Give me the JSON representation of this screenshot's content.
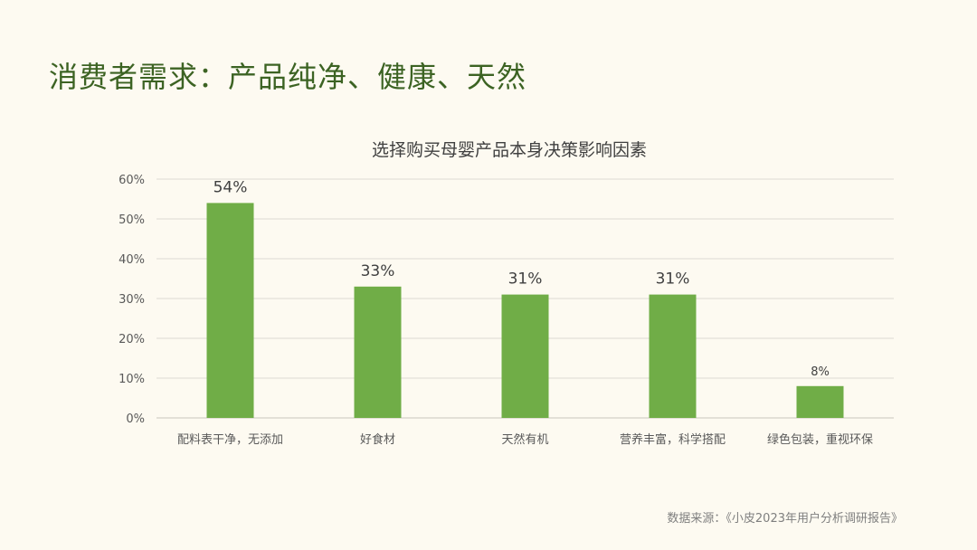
{
  "slide": {
    "title": "消费者需求：产品纯净、健康、天然",
    "source": "数据来源：《小皮2023年用户分析调研报告》"
  },
  "colors": {
    "bar": "#70ad47",
    "title": "#3c6323",
    "grid": "#dddad2",
    "axis_text": "#595959",
    "background": "#fdfaf1"
  },
  "chart_data": {
    "type": "bar",
    "title": "选择购买母婴产品本身决策影响因素",
    "categories": [
      "配料表干净，无添加",
      "好食材",
      "天然有机",
      "营养丰富，科学搭配",
      "绿色包装，重视环保"
    ],
    "values": [
      54,
      33,
      31,
      31,
      8
    ],
    "data_labels": [
      "54%",
      "33%",
      "31%",
      "31%",
      "8%"
    ],
    "ylim": [
      0,
      60
    ],
    "yticks": [
      0,
      10,
      20,
      30,
      40,
      50,
      60
    ],
    "ytick_labels": [
      "0%",
      "10%",
      "20%",
      "30%",
      "40%",
      "50%",
      "60%"
    ],
    "grid": true,
    "xlabel": "",
    "ylabel": ""
  }
}
